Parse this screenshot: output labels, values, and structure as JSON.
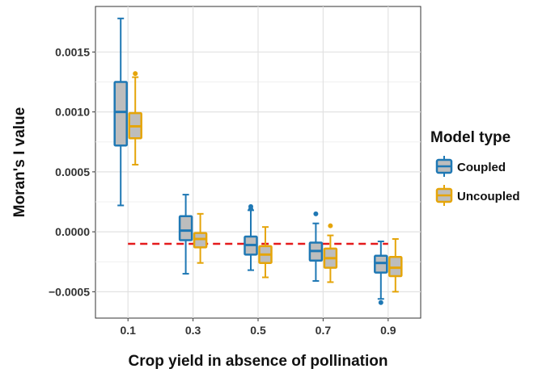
{
  "chart_data": {
    "type": "boxplot",
    "xlabel": "Crop yield in absence of pollination",
    "ylabel": "Moran's I value",
    "categories": [
      "0.1",
      "0.3",
      "0.5",
      "0.7",
      "0.9"
    ],
    "ylim": [
      -0.00072,
      0.00188
    ],
    "yticks": [
      -0.0005,
      0.0,
      0.0005,
      0.001,
      0.0015
    ],
    "ytick_labels": [
      "−0.0005",
      "0.0000",
      "0.0005",
      "0.0010",
      "0.0015"
    ],
    "grid": true,
    "legend": {
      "title": "Model type",
      "position": "right"
    },
    "reference_line": {
      "value": -0.0001,
      "color": "#e41a1c",
      "style": "dashed"
    },
    "series": [
      {
        "name": "Coupled",
        "color": "#1f78b4",
        "boxes": [
          {
            "min": 0.00022,
            "q1": 0.00072,
            "median": 0.001,
            "q3": 0.00125,
            "max": 0.00178,
            "outliers": []
          },
          {
            "min": -0.00035,
            "q1": -7e-05,
            "median": 1e-05,
            "q3": 0.00013,
            "max": 0.00031,
            "outliers": []
          },
          {
            "min": -0.00032,
            "q1": -0.00019,
            "median": -0.00011,
            "q3": -4e-05,
            "max": 0.00018,
            "outliers": [
              0.00019,
              0.00021
            ]
          },
          {
            "min": -0.00041,
            "q1": -0.00024,
            "median": -0.00016,
            "q3": -9e-05,
            "max": 7e-05,
            "outliers": [
              0.00015
            ]
          },
          {
            "min": -0.00056,
            "q1": -0.00034,
            "median": -0.00026,
            "q3": -0.0002,
            "max": -8e-05,
            "outliers": [
              -0.00059
            ]
          }
        ]
      },
      {
        "name": "Uncoupled",
        "color": "#e5a50a",
        "boxes": [
          {
            "min": 0.00056,
            "q1": 0.00078,
            "median": 0.00088,
            "q3": 0.00099,
            "max": 0.00129,
            "outliers": [
              0.00132
            ]
          },
          {
            "min": -0.00026,
            "q1": -0.00013,
            "median": -6e-05,
            "q3": -1e-05,
            "max": 0.00015,
            "outliers": []
          },
          {
            "min": -0.00038,
            "q1": -0.00026,
            "median": -0.00019,
            "q3": -0.00012,
            "max": 4e-05,
            "outliers": []
          },
          {
            "min": -0.00042,
            "q1": -0.0003,
            "median": -0.00022,
            "q3": -0.00014,
            "max": -3e-05,
            "outliers": [
              5e-05
            ]
          },
          {
            "min": -0.0005,
            "q1": -0.00037,
            "median": -0.0003,
            "q3": -0.00021,
            "max": -6e-05,
            "outliers": []
          }
        ]
      }
    ]
  }
}
